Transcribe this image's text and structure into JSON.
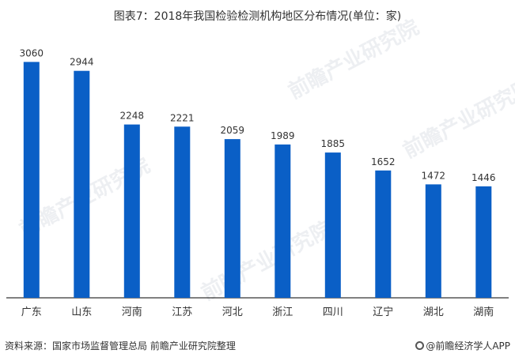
{
  "title": "图表7：2018年我国检验检测机构地区分布情况(单位：家)",
  "source": "资料来源：国家市场监督管理总局 前瞻产业研究院整理",
  "brand": "@前瞻经济学人APP",
  "watermark": "前瞻产业研究院",
  "colors": {
    "bar": "#0a5fc6",
    "axis": "#000000",
    "text": "#333333"
  },
  "chart_data": {
    "type": "bar",
    "title": "图表7：2018年我国检验检测机构地区分布情况(单位：家)",
    "categories": [
      "广东",
      "山东",
      "河南",
      "江苏",
      "河北",
      "浙江",
      "四川",
      "辽宁",
      "湖北",
      "湖南"
    ],
    "values": [
      3060,
      2944,
      2248,
      2221,
      2059,
      1989,
      1885,
      1652,
      1472,
      1446
    ],
    "xlabel": "",
    "ylabel": "",
    "ylim": [
      0,
      3300
    ],
    "grid": false,
    "data_labels": true
  }
}
